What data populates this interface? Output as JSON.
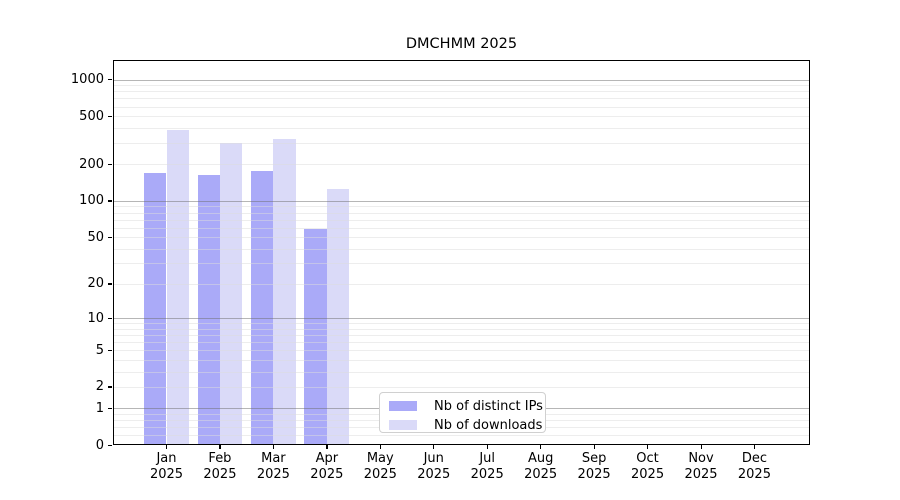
{
  "chart_data": {
    "type": "bar",
    "title": "DMCHMM 2025",
    "y_scale": "log1p",
    "y_ticks": [
      0,
      1,
      2,
      5,
      10,
      20,
      50,
      100,
      200,
      500,
      1000
    ],
    "y_major_gridlines": [
      1,
      10,
      100,
      1000
    ],
    "ylim": [
      0,
      1000
    ],
    "grid": true,
    "categories": [
      {
        "month": "Jan",
        "year": "2025"
      },
      {
        "month": "Feb",
        "year": "2025"
      },
      {
        "month": "Mar",
        "year": "2025"
      },
      {
        "month": "Apr",
        "year": "2025"
      },
      {
        "month": "May",
        "year": "2025"
      },
      {
        "month": "Jun",
        "year": "2025"
      },
      {
        "month": "Jul",
        "year": "2025"
      },
      {
        "month": "Aug",
        "year": "2025"
      },
      {
        "month": "Sep",
        "year": "2025"
      },
      {
        "month": "Oct",
        "year": "2025"
      },
      {
        "month": "Nov",
        "year": "2025"
      },
      {
        "month": "Dec",
        "year": "2025"
      }
    ],
    "series": [
      {
        "name": "Nb of distinct IPs",
        "color": "#aaaaf8",
        "values": [
          170,
          165,
          178,
          58,
          null,
          null,
          null,
          null,
          null,
          null,
          null,
          null
        ]
      },
      {
        "name": "Nb of downloads",
        "color": "#dadaf8",
        "values": [
          385,
          300,
          325,
          125,
          null,
          null,
          null,
          null,
          null,
          null,
          null,
          null
        ]
      }
    ],
    "legend": {
      "position": "lower center",
      "items": [
        "Nb of distinct IPs",
        "Nb of downloads"
      ]
    }
  }
}
